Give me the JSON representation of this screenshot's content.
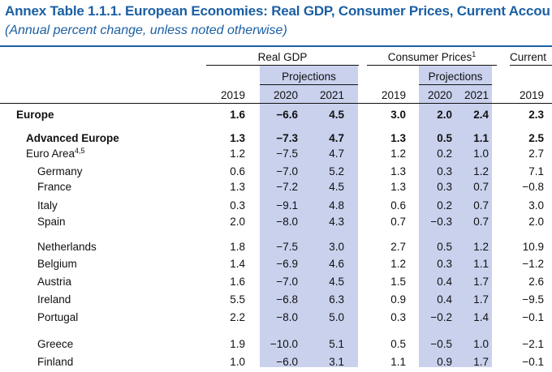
{
  "title": "Annex Table 1.1.1. European Economies: Real GDP, Consumer Prices, Current Accou",
  "subtitle": "(Annual percent change, unless noted otherwise)",
  "headers": {
    "real_gdp": "Real GDP",
    "consumer_prices": "Consumer Prices",
    "consumer_prices_note": "1",
    "current": "Current",
    "projections": "Projections",
    "years": [
      "2019",
      "2020",
      "2021",
      "2019",
      "2020",
      "2021",
      "2019"
    ]
  },
  "rows": [
    {
      "name": "Europe",
      "note": "",
      "values": [
        "1.6",
        "−6.6",
        "4.5",
        "3.0",
        "2.0",
        "2.4",
        "2.3"
      ]
    },
    {
      "name": "Advanced Europe",
      "note": "",
      "values": [
        "1.3",
        "−7.3",
        "4.7",
        "1.3",
        "0.5",
        "1.1",
        "2.5"
      ]
    },
    {
      "name": "Euro Area",
      "note": "4,5",
      "values": [
        "1.2",
        "−7.5",
        "4.7",
        "1.2",
        "0.2",
        "1.0",
        "2.7"
      ]
    },
    {
      "name": "Germany",
      "note": "",
      "values": [
        "0.6",
        "−7.0",
        "5.2",
        "1.3",
        "0.3",
        "1.2",
        "7.1"
      ]
    },
    {
      "name": "France",
      "note": "",
      "values": [
        "1.3",
        "−7.2",
        "4.5",
        "1.3",
        "0.3",
        "0.7",
        "−0.8"
      ]
    },
    {
      "name": "Italy",
      "note": "",
      "values": [
        "0.3",
        "−9.1",
        "4.8",
        "0.6",
        "0.2",
        "0.7",
        "3.0"
      ]
    },
    {
      "name": "Spain",
      "note": "",
      "values": [
        "2.0",
        "−8.0",
        "4.3",
        "0.7",
        "−0.3",
        "0.7",
        "2.0"
      ]
    },
    {
      "name": "Netherlands",
      "note": "",
      "values": [
        "1.8",
        "−7.5",
        "3.0",
        "2.7",
        "0.5",
        "1.2",
        "10.9"
      ]
    },
    {
      "name": "Belgium",
      "note": "",
      "values": [
        "1.4",
        "−6.9",
        "4.6",
        "1.2",
        "0.3",
        "1.1",
        "−1.2"
      ]
    },
    {
      "name": "Austria",
      "note": "",
      "values": [
        "1.6",
        "−7.0",
        "4.5",
        "1.5",
        "0.4",
        "1.7",
        "2.6"
      ]
    },
    {
      "name": "Ireland",
      "note": "",
      "values": [
        "5.5",
        "−6.8",
        "6.3",
        "0.9",
        "0.4",
        "1.7",
        "−9.5"
      ]
    },
    {
      "name": "Portugal",
      "note": "",
      "values": [
        "2.2",
        "−8.0",
        "5.0",
        "0.3",
        "−0.2",
        "1.4",
        "−0.1"
      ]
    },
    {
      "name": "Greece",
      "note": "",
      "values": [
        "1.9",
        "−10.0",
        "5.1",
        "0.5",
        "−0.5",
        "1.0",
        "−2.1"
      ]
    },
    {
      "name": "Finland",
      "note": "",
      "values": [
        "1.0",
        "−6.0",
        "3.1",
        "1.1",
        "0.9",
        "1.7",
        "−0.1"
      ]
    }
  ]
}
